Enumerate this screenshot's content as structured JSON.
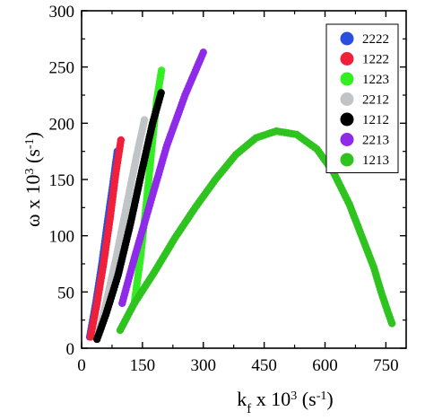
{
  "chart_data": {
    "type": "scatter",
    "xlabel": {
      "base": "k",
      "sub": "f",
      "mid": " x 10",
      "sup": "3",
      "unit_open": " (s",
      "unit_sup": "-1",
      "unit_close": ")"
    },
    "ylabel": {
      "base": "ω x 10",
      "sup": "3",
      "unit_open": " (s",
      "unit_sup": "-1",
      "unit_close": ")"
    },
    "xlim": [
      0,
      800
    ],
    "ylim": [
      0,
      300
    ],
    "xticks": [
      0,
      150,
      300,
      450,
      600,
      750
    ],
    "yticks": [
      0,
      50,
      100,
      150,
      200,
      250,
      300
    ],
    "grid": false,
    "legend_position": "top-right",
    "series": [
      {
        "name": "2222",
        "color": "#2a4fe0",
        "points": [
          [
            20,
            10
          ],
          [
            35,
            40
          ],
          [
            50,
            75
          ],
          [
            65,
            115
          ],
          [
            78,
            148
          ],
          [
            88,
            175
          ]
        ]
      },
      {
        "name": "1222",
        "color": "#f0203a",
        "points": [
          [
            22,
            10
          ],
          [
            38,
            40
          ],
          [
            54,
            75
          ],
          [
            70,
            115
          ],
          [
            84,
            155
          ],
          [
            97,
            185
          ]
        ]
      },
      {
        "name": "1223",
        "color": "#33ee22",
        "points": [
          [
            130,
            40
          ],
          [
            145,
            80
          ],
          [
            160,
            130
          ],
          [
            175,
            185
          ],
          [
            185,
            220
          ],
          [
            197,
            247
          ]
        ]
      },
      {
        "name": "2212",
        "color": "#c0c4c6",
        "points": [
          [
            40,
            10
          ],
          [
            60,
            40
          ],
          [
            85,
            80
          ],
          [
            110,
            125
          ],
          [
            135,
            170
          ],
          [
            155,
            203
          ]
        ]
      },
      {
        "name": "1212",
        "color": "#000000",
        "points": [
          [
            38,
            8
          ],
          [
            60,
            30
          ],
          [
            90,
            65
          ],
          [
            120,
            110
          ],
          [
            150,
            160
          ],
          [
            175,
            200
          ],
          [
            196,
            227
          ]
        ]
      },
      {
        "name": "2213",
        "color": "#8e2be8",
        "points": [
          [
            100,
            40
          ],
          [
            130,
            80
          ],
          [
            170,
            130
          ],
          [
            210,
            180
          ],
          [
            255,
            225
          ],
          [
            300,
            263
          ]
        ]
      },
      {
        "name": "1213",
        "color": "#2fc31f",
        "points": [
          [
            95,
            16
          ],
          [
            130,
            40
          ],
          [
            180,
            68
          ],
          [
            230,
            98
          ],
          [
            280,
            125
          ],
          [
            330,
            150
          ],
          [
            380,
            172
          ],
          [
            430,
            187
          ],
          [
            480,
            193
          ],
          [
            530,
            190
          ],
          [
            580,
            177
          ],
          [
            620,
            157
          ],
          [
            660,
            128
          ],
          [
            690,
            100
          ],
          [
            720,
            72
          ],
          [
            740,
            48
          ],
          [
            755,
            32
          ],
          [
            765,
            22
          ]
        ]
      }
    ]
  }
}
